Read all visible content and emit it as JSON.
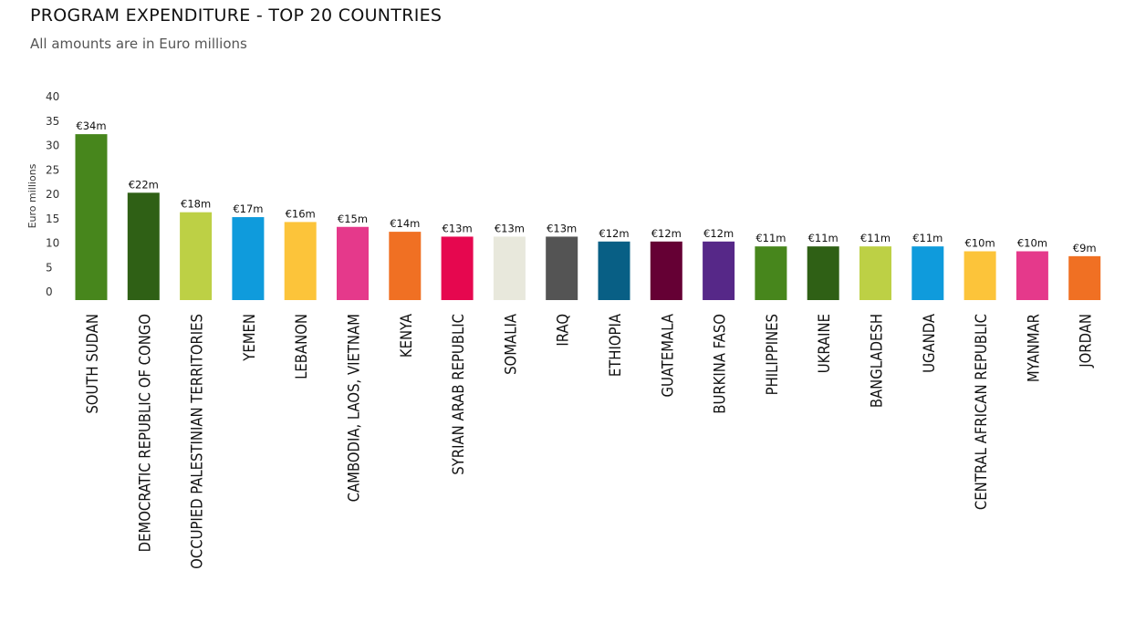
{
  "header": {
    "title": "PROGRAM EXPENDITURE - TOP 20 COUNTRIES",
    "subtitle": "All amounts are in Euro millions"
  },
  "chart_data": {
    "type": "bar",
    "title": "PROGRAM EXPENDITURE - TOP 20 COUNTRIES",
    "subtitle": "All amounts are in Euro millions",
    "xlabel": "",
    "ylabel": "Euro millions",
    "ylim": [
      0,
      40
    ],
    "yticks": [
      0,
      5,
      10,
      15,
      20,
      25,
      30,
      35,
      40
    ],
    "grid": false,
    "categories": [
      "SOUTH SUDAN",
      "DEMOCRATIC REPUBLIC OF CONGO",
      "OCCUPIED PALESTINIAN TERRITORIES",
      "YEMEN",
      "LEBANON",
      "CAMBODIA, LAOS, VIETNAM",
      "KENYA",
      "SYRIAN ARAB REPUBLIC",
      "SOMALIA",
      "IRAQ",
      "ETHIOPIA",
      "GUATEMALA",
      "BURKINA FASO",
      "PHILIPPINES",
      "UKRAINE",
      "BANGLADESH",
      "UGANDA",
      "CENTRAL AFRICAN REPUBLIC",
      "MYANMAR",
      "JORDAN"
    ],
    "values": [
      34,
      22,
      18,
      17,
      16,
      15,
      14,
      13,
      13,
      13,
      12,
      12,
      12,
      11,
      11,
      11,
      11,
      10,
      10,
      9
    ],
    "data_labels": [
      "€34m",
      "€22m",
      "€18m",
      "€17m",
      "€16m",
      "€15m",
      "€14m",
      "€13m",
      "€13m",
      "€13m",
      "€12m",
      "€12m",
      "€12m",
      "€11m",
      "€11m",
      "€11m",
      "€11m",
      "€10m",
      "€10m",
      "€9m"
    ],
    "colors": [
      "#47861c",
      "#2f6015",
      "#bdd045",
      "#0f9bdc",
      "#fcc43a",
      "#e5398b",
      "#f07023",
      "#e6074f",
      "#e8e8dc",
      "#545454",
      "#085f85",
      "#650034",
      "#562888",
      "#47861c",
      "#2f6015",
      "#bdd045",
      "#0f9bdc",
      "#fcc43a",
      "#e5398b",
      "#f07023"
    ]
  }
}
